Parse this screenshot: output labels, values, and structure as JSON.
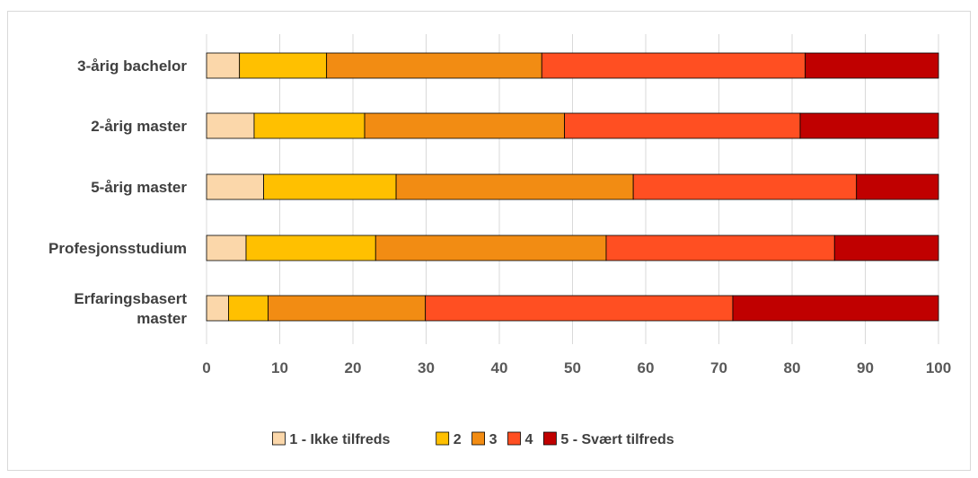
{
  "chart_data": {
    "type": "bar",
    "orientation": "horizontal",
    "stacked": true,
    "categories": [
      "3-årig bachelor",
      "2-årig master",
      "5-årig master",
      "Profesjonsstudium",
      "Erfaringsbasert master"
    ],
    "category_lines": [
      [
        "3-årig bachelor"
      ],
      [
        "2-årig master"
      ],
      [
        "5-årig master"
      ],
      [
        "Profesjonsstudium"
      ],
      [
        "Erfaringsbasert",
        "master"
      ]
    ],
    "series": [
      {
        "name": "1 - Ikke tilfreds",
        "color": "#fbd7aa",
        "values": [
          4.5,
          6.5,
          7.8,
          5.4,
          3.0
        ]
      },
      {
        "name": "2",
        "color": "#ffc000",
        "values": [
          11.9,
          15.1,
          18.1,
          17.7,
          5.4
        ]
      },
      {
        "name": "3",
        "color": "#f28c13",
        "values": [
          29.4,
          27.3,
          32.4,
          31.5,
          21.5
        ]
      },
      {
        "name": "4",
        "color": "#ff4f22",
        "values": [
          36.0,
          32.2,
          30.5,
          31.2,
          42.0
        ]
      },
      {
        "name": "5 - Svært tilfreds",
        "color": "#c00000",
        "values": [
          18.2,
          18.9,
          11.2,
          14.2,
          28.1
        ]
      }
    ],
    "x_ticks": [
      "0",
      "10",
      "20",
      "30",
      "40",
      "50",
      "60",
      "70",
      "80",
      "90",
      "100"
    ],
    "xlim": [
      0,
      100
    ],
    "title": "",
    "xlabel": "",
    "ylabel": "",
    "gridlines": "vertical",
    "legend_position": "bottom"
  }
}
